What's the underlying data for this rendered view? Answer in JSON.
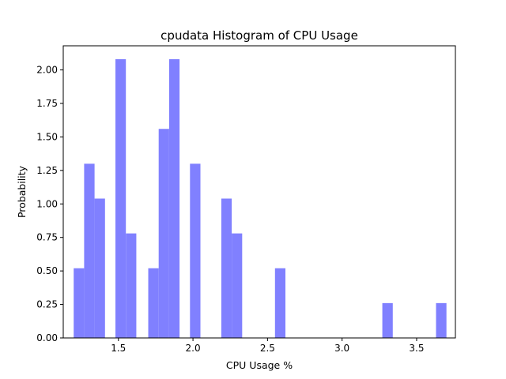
{
  "chart_data": {
    "type": "bar",
    "title": "cpudata Histogram of CPU Usage",
    "xlabel": "CPU Usage %",
    "ylabel": "Probability",
    "xlim": [
      1.13,
      3.76
    ],
    "ylim": [
      0,
      2.18
    ],
    "xticks": [
      1.5,
      2.0,
      2.5,
      3.0,
      3.5
    ],
    "xtick_labels": [
      "1.5",
      "2.0",
      "2.5",
      "3.0",
      "3.5"
    ],
    "yticks": [
      0,
      0.25,
      0.5,
      0.75,
      1.0,
      1.25,
      1.5,
      1.75,
      2.0
    ],
    "ytick_labels": [
      "0.00",
      "0.25",
      "0.50",
      "0.75",
      "1.00",
      "1.25",
      "1.50",
      "1.75",
      "2.00"
    ],
    "bar_color": "#8080ff",
    "grid": false,
    "bars": [
      {
        "x0": 1.2,
        "x1": 1.27,
        "value": 0.52
      },
      {
        "x0": 1.27,
        "x1": 1.34,
        "value": 1.3
      },
      {
        "x0": 1.34,
        "x1": 1.41,
        "value": 1.04
      },
      {
        "x0": 1.48,
        "x1": 1.55,
        "value": 2.08
      },
      {
        "x0": 1.55,
        "x1": 1.62,
        "value": 0.78
      },
      {
        "x0": 1.7,
        "x1": 1.77,
        "value": 0.52
      },
      {
        "x0": 1.77,
        "x1": 1.84,
        "value": 1.56
      },
      {
        "x0": 1.84,
        "x1": 1.91,
        "value": 2.08
      },
      {
        "x0": 1.98,
        "x1": 2.05,
        "value": 1.3
      },
      {
        "x0": 2.19,
        "x1": 2.26,
        "value": 1.04
      },
      {
        "x0": 2.26,
        "x1": 2.33,
        "value": 0.78
      },
      {
        "x0": 2.55,
        "x1": 2.62,
        "value": 0.52
      },
      {
        "x0": 3.27,
        "x1": 3.34,
        "value": 0.26
      },
      {
        "x0": 3.63,
        "x1": 3.7,
        "value": 0.26
      }
    ]
  }
}
